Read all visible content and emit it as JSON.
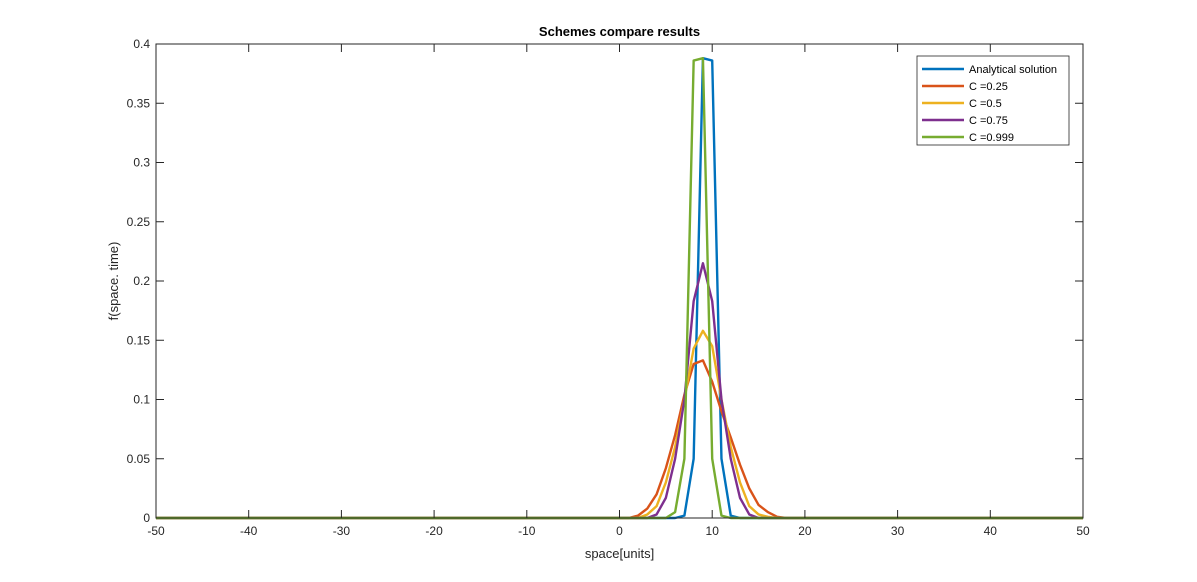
{
  "chart_data": {
    "type": "line",
    "title": "Schemes compare results",
    "xlabel": "space[units]",
    "ylabel": "f(space. time)",
    "xlim": [
      -50,
      50
    ],
    "ylim": [
      0,
      0.4
    ],
    "xticks": [
      -50,
      -40,
      -30,
      -20,
      -10,
      0,
      10,
      20,
      30,
      40,
      50
    ],
    "yticks": [
      0,
      0.05,
      0.1,
      0.15,
      0.2,
      0.25,
      0.3,
      0.35,
      0.4
    ],
    "xtick_labels": [
      "-50",
      "-40",
      "-30",
      "-20",
      "-10",
      "0",
      "10",
      "20",
      "30",
      "40",
      "50"
    ],
    "ytick_labels": [
      "0",
      "0.05",
      "0.1",
      "0.15",
      "0.2",
      "0.25",
      "0.3",
      "0.35",
      "0.4"
    ],
    "grid": false,
    "legend_position": "top-right",
    "series": [
      {
        "name": "Analytical solution",
        "color": "#0072BD",
        "x": [
          -50,
          6,
          7,
          8,
          9,
          10,
          11,
          12,
          13,
          50
        ],
        "y": [
          0,
          0,
          0.002,
          0.05,
          0.388,
          0.386,
          0.05,
          0.002,
          0,
          0
        ]
      },
      {
        "name": "C =0.25",
        "color": "#D95319",
        "x": [
          -50,
          1,
          2,
          3,
          4,
          5,
          6,
          7,
          8,
          9,
          10,
          11,
          12,
          13,
          14,
          15,
          16,
          17,
          18,
          50
        ],
        "y": [
          0,
          0,
          0.002,
          0.008,
          0.02,
          0.042,
          0.07,
          0.104,
          0.13,
          0.133,
          0.115,
          0.09,
          0.068,
          0.045,
          0.025,
          0.011,
          0.005,
          0.001,
          0,
          0
        ]
      },
      {
        "name": "C =0.5",
        "color": "#EDB120",
        "x": [
          -50,
          2,
          3,
          4,
          5,
          6,
          7,
          8,
          9,
          10,
          11,
          12,
          13,
          14,
          15,
          16,
          17,
          50
        ],
        "y": [
          0,
          0,
          0.003,
          0.01,
          0.03,
          0.06,
          0.1,
          0.143,
          0.158,
          0.145,
          0.1,
          0.06,
          0.03,
          0.01,
          0.003,
          0.001,
          0,
          0
        ]
      },
      {
        "name": "C =0.75",
        "color": "#7E2F8E",
        "x": [
          -50,
          3,
          4,
          5,
          6,
          7,
          8,
          9,
          10,
          11,
          12,
          13,
          14,
          15,
          50
        ],
        "y": [
          0,
          0,
          0.003,
          0.017,
          0.05,
          0.1,
          0.183,
          0.215,
          0.183,
          0.1,
          0.05,
          0.017,
          0.003,
          0,
          0
        ]
      },
      {
        "name": "C =0.999",
        "color": "#77AC30",
        "x": [
          -50,
          5,
          6,
          7,
          8,
          9,
          10,
          11,
          12,
          50
        ],
        "y": [
          0,
          0,
          0.005,
          0.05,
          0.386,
          0.388,
          0.05,
          0.002,
          0,
          0
        ]
      }
    ]
  }
}
